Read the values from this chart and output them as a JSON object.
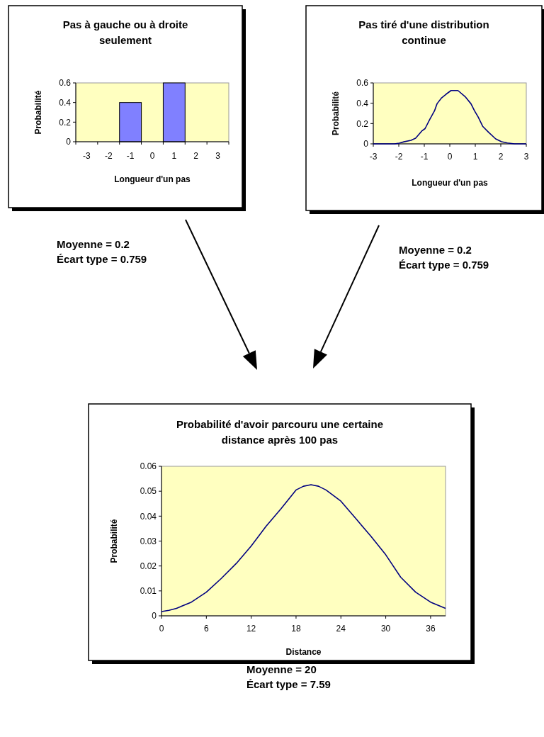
{
  "chart_data": [
    {
      "type": "bar",
      "title": "Pas à gauche ou à droite seulement",
      "xlabel": "Longueur d'un pas",
      "ylabel": "Probabilité",
      "categories": [
        "-3",
        "-2",
        "-1",
        "0",
        "1",
        "2",
        "3"
      ],
      "values": [
        0,
        0,
        0.4,
        0,
        0.6,
        0,
        0
      ],
      "color": "#8080ff",
      "ylim": [
        0,
        0.6
      ],
      "yticks": [
        0,
        0.2,
        0.4,
        0.6
      ],
      "annotations": [
        "Moyenne = 0.2",
        "Écart type = 0.759"
      ]
    },
    {
      "type": "line",
      "title": "Pas tiré d'une distribution continue",
      "xlabel": "Longueur d'un pas",
      "ylabel": "Probabilité",
      "x": [
        -3,
        -2.17,
        -1.98,
        -1.8,
        -1.52,
        -1.34,
        -1.1,
        -0.97,
        -0.78,
        -0.6,
        -0.5,
        -0.32,
        -0.14,
        0.05,
        0.32,
        0.6,
        0.83,
        0.97,
        1.11,
        1.29,
        1.52,
        1.8,
        2.03,
        2.26,
        2.54,
        3
      ],
      "values": [
        0,
        0,
        0.007,
        0.02,
        0.035,
        0.056,
        0.126,
        0.15,
        0.243,
        0.325,
        0.395,
        0.453,
        0.49,
        0.525,
        0.525,
        0.465,
        0.395,
        0.325,
        0.266,
        0.173,
        0.114,
        0.049,
        0.021,
        0.009,
        0,
        0
      ],
      "color": "#000080",
      "xlim": [
        -3,
        3
      ],
      "xticks": [
        -3,
        -2,
        -1,
        0,
        1,
        2,
        3
      ],
      "ylim": [
        0,
        0.6
      ],
      "yticks": [
        0,
        0.2,
        0.4,
        0.6
      ],
      "annotations": [
        "Moyenne = 0.2",
        "Écart type = 0.759"
      ]
    },
    {
      "type": "line",
      "title": "Probabilité d'avoir parcouru une certaine distance après 100 pas",
      "xlabel": "Distance",
      "ylabel": "Probabilité",
      "x": [
        0,
        1,
        2,
        4,
        6,
        8,
        10,
        12,
        14,
        16,
        18,
        19,
        20,
        21,
        22,
        24,
        26,
        28,
        30,
        32,
        34,
        36,
        38
      ],
      "values": [
        0.0017,
        0.0022,
        0.003,
        0.0055,
        0.0095,
        0.015,
        0.021,
        0.028,
        0.036,
        0.043,
        0.0505,
        0.052,
        0.0526,
        0.052,
        0.0505,
        0.046,
        0.039,
        0.032,
        0.0245,
        0.0155,
        0.0095,
        0.0055,
        0.003
      ],
      "color": "#000080",
      "xlim": [
        0,
        38
      ],
      "xticks": [
        0,
        6,
        12,
        18,
        24,
        30,
        36
      ],
      "ylim": [
        0,
        0.06
      ],
      "yticks": [
        0,
        0.01,
        0.02,
        0.03,
        0.04,
        0.05,
        0.06
      ],
      "annotations": [
        "Moyenne = 20",
        "Écart type = 7.59"
      ]
    }
  ]
}
